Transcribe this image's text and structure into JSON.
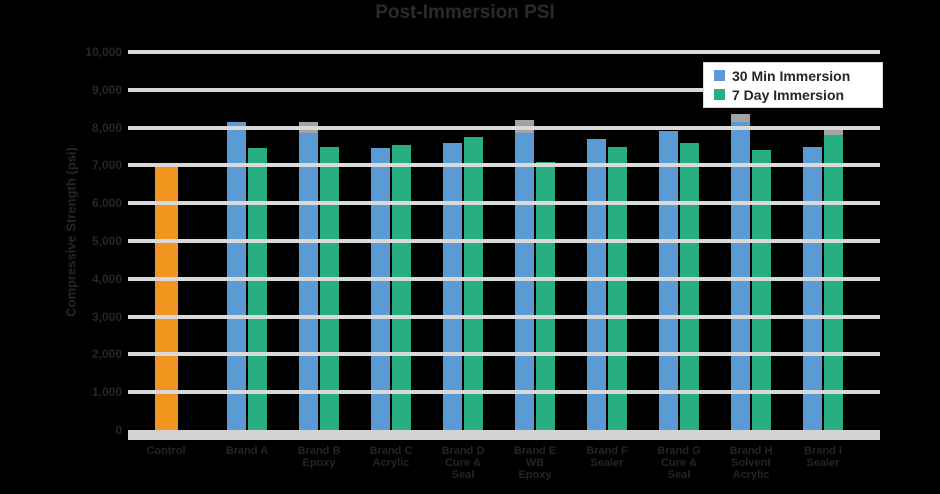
{
  "colors": {
    "background": "#000000",
    "control": "#F2951F",
    "immersion_30min": "#5B9BD5",
    "immersion_7day": "#27AE82",
    "gridline": "#D9D9D9",
    "axis_band": "#D2D2D2",
    "bar_cap": "#A3A3A3",
    "ink": "#262626",
    "legend_bg": "#FFFFFF"
  },
  "legend": {
    "items": [
      {
        "label": "30 Min Immersion",
        "color": "#5B9BD5"
      },
      {
        "label": "7 Day Immersion",
        "color": "#27AE82"
      }
    ]
  },
  "chart_data": {
    "type": "bar",
    "title": "Post-Immersion PSI",
    "xlabel": "",
    "ylabel": "Compressive Strength (psi)",
    "ylim": [
      0,
      10000
    ],
    "ytick_step": 1000,
    "ytick_labels": [
      "10,000",
      "9,000",
      "8,000",
      "7,000",
      "6,000",
      "5,000",
      "4,000",
      "3,000",
      "2,000",
      "1,000",
      "0"
    ],
    "grid": true,
    "gridlines_over_bars": true,
    "legend_position": "top-right",
    "categories": [
      {
        "label_lines": [
          "Control"
        ]
      },
      {
        "label_lines": [
          "Brand A"
        ]
      },
      {
        "label_lines": [
          "Brand B",
          "Epoxy"
        ]
      },
      {
        "label_lines": [
          "Brand C",
          "Acrylic"
        ]
      },
      {
        "label_lines": [
          "Brand D",
          "Cure &",
          "Seal"
        ]
      },
      {
        "label_lines": [
          "Brand E",
          "WB",
          "Epoxy"
        ]
      },
      {
        "label_lines": [
          "Brand F",
          "Sealer"
        ]
      },
      {
        "label_lines": [
          "Brand G",
          "Cure &",
          "Seal"
        ]
      },
      {
        "label_lines": [
          "Brand H",
          "Solvent",
          "Acrylic"
        ]
      },
      {
        "label_lines": [
          "Brand I",
          "Sealer"
        ]
      }
    ],
    "series": [
      {
        "name": "Control",
        "color": "#F2951F",
        "values": [
          7000,
          null,
          null,
          null,
          null,
          null,
          null,
          null,
          null,
          null
        ],
        "cap_values": [
          null,
          null,
          null,
          null,
          null,
          null,
          null,
          null,
          null,
          null
        ]
      },
      {
        "name": "30 Min Immersion",
        "color": "#5B9BD5",
        "values": [
          null,
          8150,
          7850,
          7450,
          7600,
          7850,
          7700,
          7900,
          8150,
          7500
        ],
        "cap_values": [
          null,
          null,
          8150,
          null,
          null,
          8200,
          null,
          null,
          8350,
          null
        ]
      },
      {
        "name": "7 Day Immersion",
        "color": "#27AE82",
        "values": [
          null,
          7450,
          7500,
          7550,
          7750,
          7100,
          7500,
          7600,
          7400,
          7800
        ],
        "cap_values": [
          null,
          null,
          null,
          null,
          null,
          null,
          null,
          null,
          null,
          7950
        ]
      }
    ]
  }
}
